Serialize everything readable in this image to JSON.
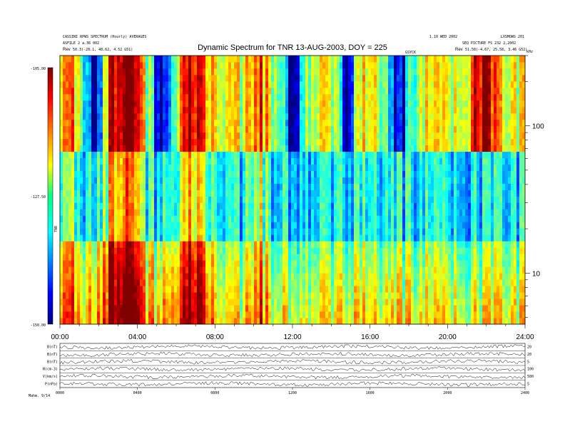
{
  "chart_data": {
    "type": "heatmap",
    "title": "Dynamic Spectrum for TNR 13-AUG-2003, DOY = 225",
    "header_left": [
      "CASSINI RPWS SPECTRUM (Hourly) AVERAGES",
      "ASFILE 2 a.36 002",
      "Rev",
      "50.3(-28.1, 48.62, 4.52 G51)"
    ],
    "header_right": [
      "1.10 WED 2002",
      "LXSMOWS 201",
      "SEQ PICTURE FS 232 2,2002",
      "Rev",
      "51.58(-4.67, 25.58, 3.46 G52)"
    ],
    "note": "GSYCK",
    "colorbar": {
      "max_label": "-105.00",
      "mid_label": "-127.50",
      "min_label": "-150.00",
      "range": [
        -150,
        -105
      ],
      "axis_label": "TNR"
    },
    "yaxis": {
      "unit_label": "kHz",
      "scale": "log",
      "range": [
        4.5,
        300
      ],
      "ticks": [
        10,
        100
      ],
      "tick_labels": [
        "10",
        "100"
      ]
    },
    "xaxis": {
      "range_hours": [
        0,
        24
      ],
      "ticks": [
        0,
        4,
        8,
        12,
        16,
        20,
        24
      ],
      "tick_labels": [
        "00:00",
        "04:00",
        "08:00",
        "12:00",
        "16:00",
        "20:00",
        "24:00"
      ]
    },
    "mode_boundary_khz": [
      16,
      65
    ],
    "bursts": [
      {
        "t": 3.2,
        "w": 0.9,
        "a": 1.0,
        "fmin": 4.5,
        "fmax": 300
      },
      {
        "t": 6.8,
        "w": 0.8,
        "a": 0.8,
        "fmin": 4.5,
        "fmax": 300
      },
      {
        "t": 0.4,
        "w": 0.5,
        "a": 0.6,
        "fmin": 4.5,
        "fmax": 300
      },
      {
        "t": 21.8,
        "w": 0.7,
        "a": 0.8,
        "fmin": 65,
        "fmax": 300
      },
      {
        "t": 10.2,
        "w": 0.5,
        "a": 0.5,
        "fmin": 4.5,
        "fmax": 300
      }
    ],
    "dark_bands": [
      {
        "t": 5.3,
        "w": 0.6,
        "fmin": 65,
        "fmax": 300
      },
      {
        "t": 12.0,
        "w": 0.5,
        "fmin": 65,
        "fmax": 300
      },
      {
        "t": 17.5,
        "w": 0.6,
        "fmin": 65,
        "fmax": 300
      },
      {
        "t": 1.8,
        "w": 0.5,
        "fmin": 65,
        "fmax": 300
      },
      {
        "t": 14.8,
        "w": 0.4,
        "fmin": 65,
        "fmax": 300
      }
    ],
    "panels": [
      {
        "label": "B(nT)",
        "right_label": "20"
      },
      {
        "label": "B(nT)",
        "right_label": "20"
      },
      {
        "label": "B(nT)",
        "right_label": "5"
      },
      {
        "label": "N(cm-3)",
        "right_label": "100"
      },
      {
        "label": "V(km/s)",
        "right_label": "500"
      },
      {
        "label": "P(nPa)",
        "right_label": "5"
      }
    ],
    "panel_tick_labels": [
      "0000",
      "0400",
      "0800",
      "1200",
      "1600",
      "2000",
      "2400"
    ],
    "footer_left": "Mahm. 9/14"
  }
}
